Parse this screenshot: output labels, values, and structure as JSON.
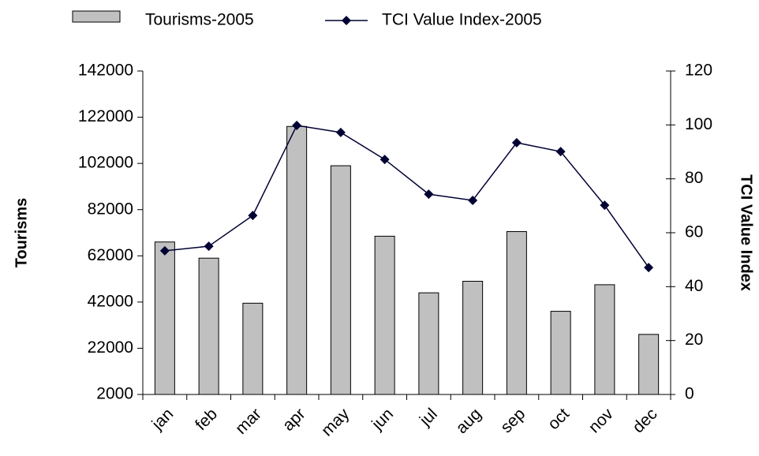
{
  "chart_data": {
    "type": "bar-line",
    "categories": [
      "jan",
      "feb",
      "mar",
      "apr",
      "may",
      "jun",
      "jul",
      "aug",
      "sep",
      "oct",
      "nov",
      "dec"
    ],
    "series": [
      {
        "name": "Tourisms-2005",
        "type": "bar",
        "color": "#c0c0c0",
        "values": [
          68000,
          61000,
          41500,
          118000,
          101000,
          70500,
          46000,
          51000,
          72500,
          38000,
          49500,
          28000
        ]
      },
      {
        "name": "TCI Value Index-2005",
        "type": "line",
        "axis": "y2",
        "color": "#000033",
        "values": [
          53.3,
          55,
          66.4,
          99.8,
          97.2,
          87.2,
          74.3,
          72,
          93.4,
          90.1,
          70.2,
          47.1
        ]
      }
    ],
    "ylabel": "Tourisms",
    "y2label": "TCI Value Index",
    "ylim": [
      2000,
      142000
    ],
    "yticks": [
      2000,
      22000,
      42000,
      62000,
      82000,
      102000,
      122000,
      142000
    ],
    "y2lim": [
      0,
      120
    ],
    "y2ticks": [
      0,
      20,
      40,
      60,
      80,
      100,
      120
    ],
    "grid": false,
    "legend": "top"
  }
}
